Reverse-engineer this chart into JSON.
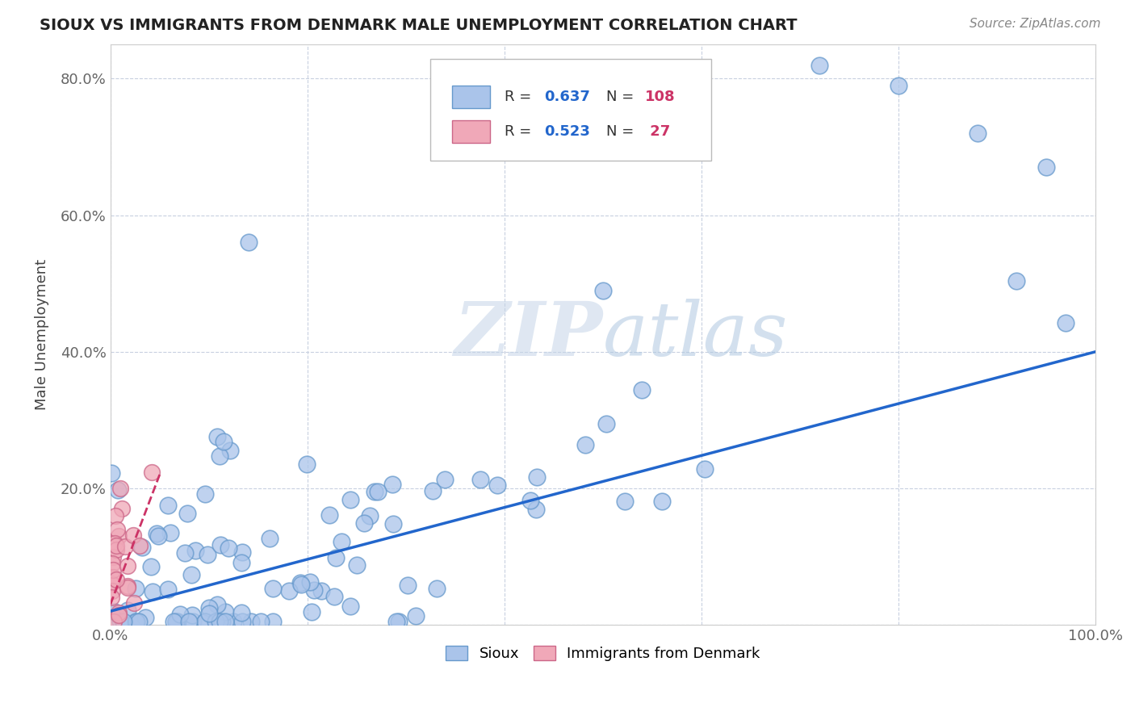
{
  "title": "SIOUX VS IMMIGRANTS FROM DENMARK MALE UNEMPLOYMENT CORRELATION CHART",
  "source": "Source: ZipAtlas.com",
  "ylabel": "Male Unemployment",
  "xlim": [
    0.0,
    1.0
  ],
  "ylim": [
    0.0,
    0.85
  ],
  "xtick_positions": [
    0.0,
    0.2,
    0.4,
    0.6,
    0.8,
    1.0
  ],
  "xtick_labels": [
    "0.0%",
    "",
    "",
    "",
    "",
    "100.0%"
  ],
  "ytick_positions": [
    0.0,
    0.2,
    0.4,
    0.6,
    0.8
  ],
  "ytick_labels": [
    "",
    "20.0%",
    "40.0%",
    "60.0%",
    "80.0%"
  ],
  "sioux_R": 0.637,
  "sioux_N": 108,
  "denmark_R": 0.523,
  "denmark_N": 27,
  "sioux_color": "#aac4ea",
  "sioux_edge_color": "#6699cc",
  "denmark_color": "#f0a8b8",
  "denmark_edge_color": "#cc6688",
  "sioux_line_color": "#2266cc",
  "denmark_line_color": "#cc3366",
  "watermark_color": "#c8d8f0",
  "legend_box_color": "#ffffff",
  "legend_border_color": "#cccccc",
  "R_text_color": "#2266cc",
  "N_text_color": "#cc3366",
  "title_color": "#222222",
  "source_color": "#888888",
  "grid_color": "#c8d0e0",
  "ylabel_color": "#444444",
  "tick_color": "#666666",
  "sioux_line_start_x": 0.0,
  "sioux_line_start_y": 0.02,
  "sioux_line_end_x": 1.0,
  "sioux_line_end_y": 0.4,
  "denmark_line_start_x": 0.0,
  "denmark_line_start_y": 0.03,
  "denmark_line_end_x": 0.05,
  "denmark_line_end_y": 0.22
}
